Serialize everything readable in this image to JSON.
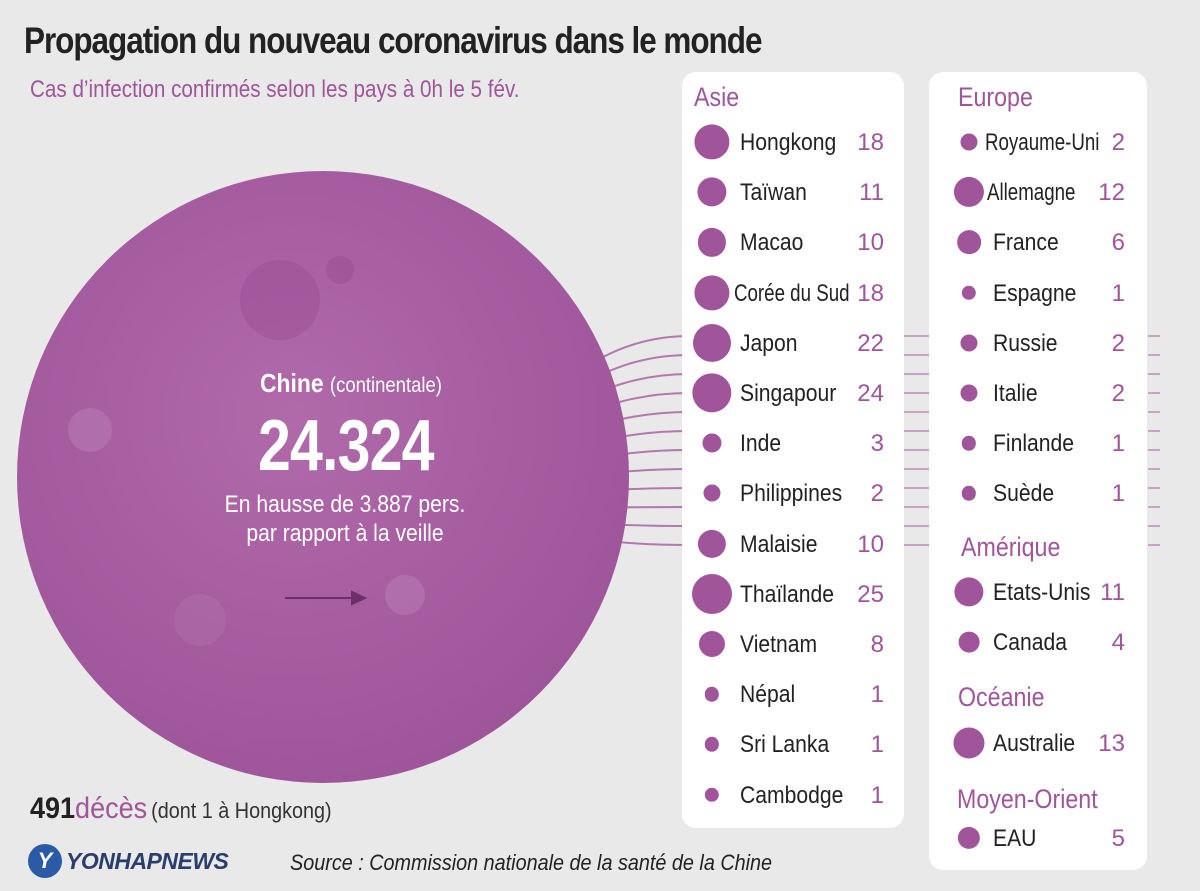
{
  "title": "Propagation du nouveau coronavirus dans le monde",
  "subtitle": "Cas d’infection confirmés selon les pays à 0h le 5 fév.",
  "colors": {
    "accent": "#a0559a",
    "china_circle": "#a65aa0",
    "background": "#e9e9e9",
    "panel": "#ffffff",
    "text": "#222222"
  },
  "china": {
    "name": "Chine",
    "qualifier": "(continentale)",
    "value": "24.324",
    "increase_line1": "En hausse de 3.887 pers.",
    "increase_line2": "par rapport à la veille"
  },
  "deaths": {
    "number": "491",
    "word": "décès",
    "note": "(dont 1 à Hongkong)"
  },
  "logo": {
    "mark": "Y",
    "text": "YONHAPNEWS"
  },
  "source": "Source : Commission nationale de la santé de la Chine",
  "chart_data": {
    "type": "bubble-list",
    "title": "Propagation du nouveau coronavirus dans le monde",
    "subtitle": "Cas d’infection confirmés selon les pays à 0h le 5 fév.",
    "center": {
      "name": "Chine",
      "qualifier": "(continentale)",
      "value": 24324,
      "increase": 3887
    },
    "deaths": 491,
    "regions": [
      {
        "name": "Asie",
        "countries": [
          {
            "name": "Hongkong",
            "value": 18
          },
          {
            "name": "Taïwan",
            "value": 11
          },
          {
            "name": "Macao",
            "value": 10
          },
          {
            "name": "Corée du Sud",
            "value": 18
          },
          {
            "name": "Japon",
            "value": 22
          },
          {
            "name": "Singapour",
            "value": 24
          },
          {
            "name": "Inde",
            "value": 3
          },
          {
            "name": "Philippines",
            "value": 2
          },
          {
            "name": "Malaisie",
            "value": 10
          },
          {
            "name": "Thaïlande",
            "value": 25
          },
          {
            "name": "Vietnam",
            "value": 8
          },
          {
            "name": "Népal",
            "value": 1
          },
          {
            "name": "Sri Lanka",
            "value": 1
          },
          {
            "name": "Cambodge",
            "value": 1
          }
        ]
      },
      {
        "name": "Europe",
        "countries": [
          {
            "name": "Royaume-Uni",
            "value": 2
          },
          {
            "name": "Allemagne",
            "value": 12
          },
          {
            "name": "France",
            "value": 6
          },
          {
            "name": "Espagne",
            "value": 1
          },
          {
            "name": "Russie",
            "value": 2
          },
          {
            "name": "Italie",
            "value": 2
          },
          {
            "name": "Finlande",
            "value": 1
          },
          {
            "name": "Suède",
            "value": 1
          }
        ]
      },
      {
        "name": "Amérique",
        "countries": [
          {
            "name": "Etats-Unis",
            "value": 11
          },
          {
            "name": "Canada",
            "value": 4
          }
        ]
      },
      {
        "name": "Océanie",
        "countries": [
          {
            "name": "Australie",
            "value": 13
          }
        ]
      },
      {
        "name": "Moyen-Orient",
        "countries": [
          {
            "name": "EAU",
            "value": 5
          }
        ]
      }
    ]
  }
}
